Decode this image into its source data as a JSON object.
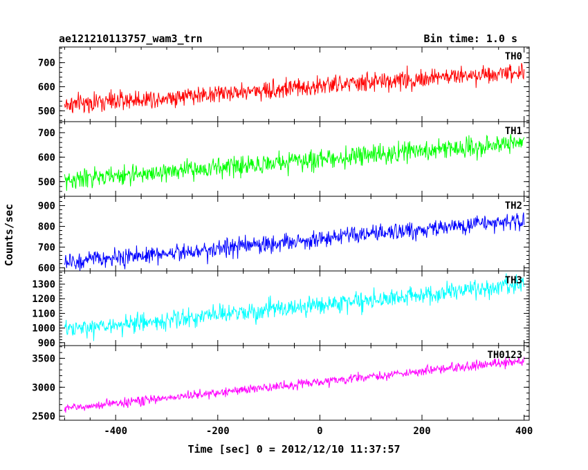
{
  "header": {
    "left": "ae121210113757_wam3_trn",
    "right": "Bin time: 1.0 s"
  },
  "chart_data": {
    "type": "line",
    "title": "ae121210113757_wam3_trn",
    "subtitle": "Bin time: 1.0 s",
    "xlabel": "Time [sec] 0 = 2012/12/10 11:37:57",
    "ylabel": "Counts/sec",
    "xlim": [
      -510,
      410
    ],
    "x_range": [
      -500,
      400
    ],
    "x_step": 1,
    "xticks": [
      -400,
      -200,
      0,
      200,
      400
    ],
    "xtick_labels": [
      "-400",
      "-200",
      "0",
      "200",
      "400"
    ],
    "grid": false,
    "panels": [
      {
        "name": "TH0",
        "color": "#ff0000",
        "ylim": [
          455,
          765
        ],
        "yticks": [
          500,
          600,
          700
        ],
        "ytick_labels": [
          "500",
          "600",
          "700"
        ],
        "trend_start": 525,
        "trend_end": 665,
        "noise": 28,
        "series": [
          {
            "values_summary": "linear increase from ~525 at -500 s to ~665 at 400 s, 1 s bins with noise ±~60"
          }
        ]
      },
      {
        "name": "TH1",
        "color": "#00ff00",
        "ylim": [
          440,
          745
        ],
        "yticks": [
          500,
          600,
          700
        ],
        "ytick_labels": [
          "500",
          "600",
          "700"
        ],
        "trend_start": 505,
        "trend_end": 660,
        "noise": 28,
        "series": [
          {
            "values_summary": "linear increase from ~505 at -500 s to ~660 at 400 s, 1 s bins with noise ±~60"
          }
        ]
      },
      {
        "name": "TH2",
        "color": "#0000ff",
        "ylim": [
          585,
          945
        ],
        "yticks": [
          600,
          700,
          800,
          900
        ],
        "ytick_labels": [
          "600",
          "700",
          "800",
          "900"
        ],
        "trend_start": 625,
        "trend_end": 830,
        "noise": 30,
        "series": [
          {
            "values_summary": "linear increase from ~625 at -500 s to ~830 at 400 s, 1 s bins with noise ±~65"
          }
        ]
      },
      {
        "name": "TH3",
        "color": "#00ffff",
        "ylim": [
          880,
          1390
        ],
        "yticks": [
          900,
          1000,
          1100,
          1200,
          1300
        ],
        "ytick_labels": [
          "900",
          "1000",
          "1100",
          "1200",
          "1300"
        ],
        "trend_start": 985,
        "trend_end": 1295,
        "noise": 45,
        "series": [
          {
            "values_summary": "linear increase from ~985 at -500 s to ~1295 at 400 s, 1 s bins with noise ±~100"
          }
        ]
      },
      {
        "name": "TH0123",
        "color": "#ff00ff",
        "ylim": [
          2430,
          3720
        ],
        "yticks": [
          2500,
          3000,
          3500
        ],
        "ytick_labels": [
          "2500",
          "3000",
          "3500"
        ],
        "trend_start": 2630,
        "trend_end": 3460,
        "noise": 55,
        "series": [
          {
            "values_summary": "linear increase from ~2630 at -500 s to ~3460 at 400 s, 1 s bins with noise ±~120"
          }
        ]
      }
    ]
  }
}
